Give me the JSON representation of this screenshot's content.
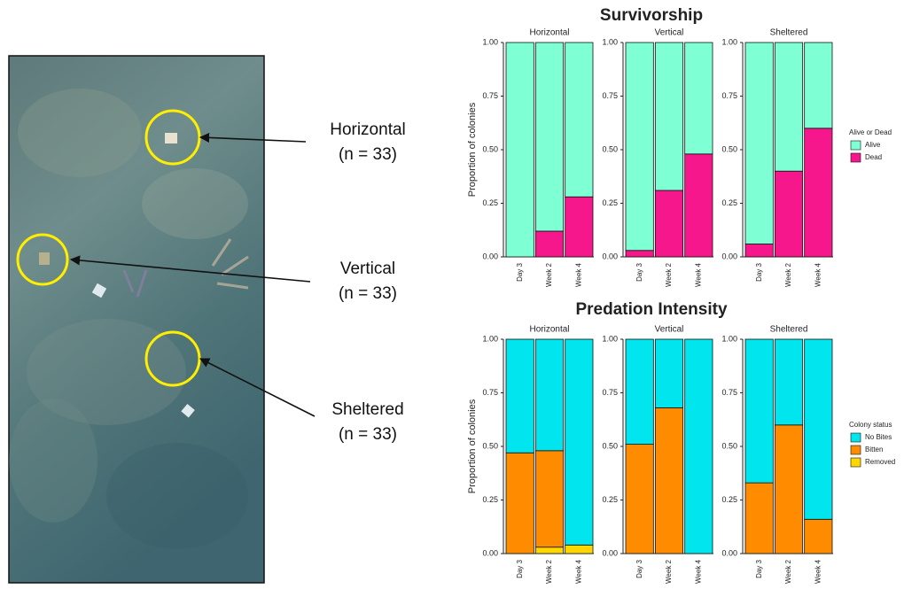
{
  "photo_labels": [
    {
      "name": "Horizontal",
      "n": "(n = 33)"
    },
    {
      "name": "Vertical",
      "n": "(n = 33)"
    },
    {
      "name": "Sheltered",
      "n": "(n = 33)"
    }
  ],
  "chart_data": [
    {
      "type": "bar",
      "stacked": true,
      "title": "Survivorship",
      "ylabel": "Proportion of colonies",
      "legend_title": "Alive or Dead",
      "facets": [
        {
          "title": "Horizontal",
          "categories": [
            "Day 3",
            "Week 2",
            "Week 4"
          ]
        },
        {
          "title": "Vertical",
          "categories": [
            "Day 3",
            "Week 2",
            "Week 4"
          ]
        },
        {
          "title": "Sheltered",
          "categories": [
            "Day 3",
            "Week 2",
            "Week 4"
          ]
        }
      ],
      "series": [
        {
          "name": "Alive",
          "color": "#7fffd4",
          "values": [
            [
              1,
              0.88,
              0.72
            ],
            [
              0.97,
              0.69,
              0.52
            ],
            [
              0.94,
              0.6,
              0.4
            ]
          ]
        },
        {
          "name": "Dead",
          "color": "#f7178c",
          "values": [
            [
              0,
              0.12,
              0.28
            ],
            [
              0.03,
              0.31,
              0.48
            ],
            [
              0.06,
              0.4,
              0.6
            ]
          ]
        }
      ],
      "ylim": [
        0,
        1
      ],
      "yticks": [
        {
          "value": 0,
          "label": "0.00"
        },
        {
          "value": 0.25,
          "label": "0.25"
        },
        {
          "value": 0.5,
          "label": "0.50"
        },
        {
          "value": 0.75,
          "label": "0.75"
        },
        {
          "value": 1,
          "label": "1.00"
        }
      ]
    },
    {
      "type": "bar",
      "stacked": true,
      "title": "Predation Intensity",
      "ylabel": "Proportion of colonies",
      "legend_title": "Colony status",
      "facets": [
        {
          "title": "Horizontal",
          "categories": [
            "Day 3",
            "Week 2",
            "Week 4"
          ]
        },
        {
          "title": "Vertical",
          "categories": [
            "Day 3",
            "Week 2",
            "Week 4"
          ]
        },
        {
          "title": "Sheltered",
          "categories": [
            "Day 3",
            "Week 2",
            "Week 4"
          ]
        }
      ],
      "series": [
        {
          "name": "No Bites",
          "color": "#00e5ee",
          "values": [
            [
              0.53,
              0.52,
              0.96
            ],
            [
              0.49,
              0.32,
              1
            ],
            [
              0.67,
              0.4,
              0.84
            ]
          ]
        },
        {
          "name": "Bitten",
          "color": "#ff8c00",
          "values": [
            [
              0.47,
              0.45,
              0
            ],
            [
              0.51,
              0.68,
              0
            ],
            [
              0.33,
              0.6,
              0.16
            ]
          ]
        },
        {
          "name": "Removed",
          "color": "#ffd700",
          "values": [
            [
              0,
              0.03,
              0.04
            ],
            [
              0,
              0,
              0
            ],
            [
              0,
              0,
              0
            ]
          ]
        }
      ],
      "ylim": [
        0,
        1
      ],
      "yticks": [
        {
          "value": 0,
          "label": "0.00"
        },
        {
          "value": 0.25,
          "label": "0.25"
        },
        {
          "value": 0.5,
          "label": "0.50"
        },
        {
          "value": 0.75,
          "label": "0.75"
        },
        {
          "value": 1,
          "label": "1.00"
        }
      ]
    }
  ]
}
